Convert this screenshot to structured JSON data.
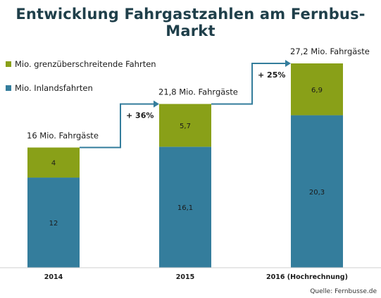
{
  "title": "Entwicklung Fahrgastzahlen am Fernbus-Markt",
  "source": "Quelle: Fernbusse.de",
  "colors": {
    "domestic": "#347d9c",
    "crossborder": "#89a018",
    "arrow": "#347d9c",
    "axis": "#cfcfcf"
  },
  "chart_data": {
    "type": "bar",
    "stacked": true,
    "categories": [
      "2014",
      "2015",
      "2016 (Hochrechnung)"
    ],
    "series": [
      {
        "name": "Mio. Inlandsfahrten",
        "values": [
          12,
          16.1,
          20.3
        ],
        "labels": [
          "12",
          "16,1",
          "20,3"
        ]
      },
      {
        "name": "Mio. grenzüberschreitende Fahrten",
        "values": [
          4,
          5.7,
          6.9
        ],
        "labels": [
          "4",
          "5,7",
          "6,9"
        ]
      }
    ],
    "totals": [
      "16 Mio. Fahrgäste",
      "21,8 Mio. Fahrgäste",
      "27,2 Mio. Fahrgäste"
    ],
    "growth": [
      "+ 36%",
      "+ 25%"
    ],
    "ylim": [
      0,
      27.2
    ],
    "grid": false,
    "legend_position": "top-left"
  }
}
